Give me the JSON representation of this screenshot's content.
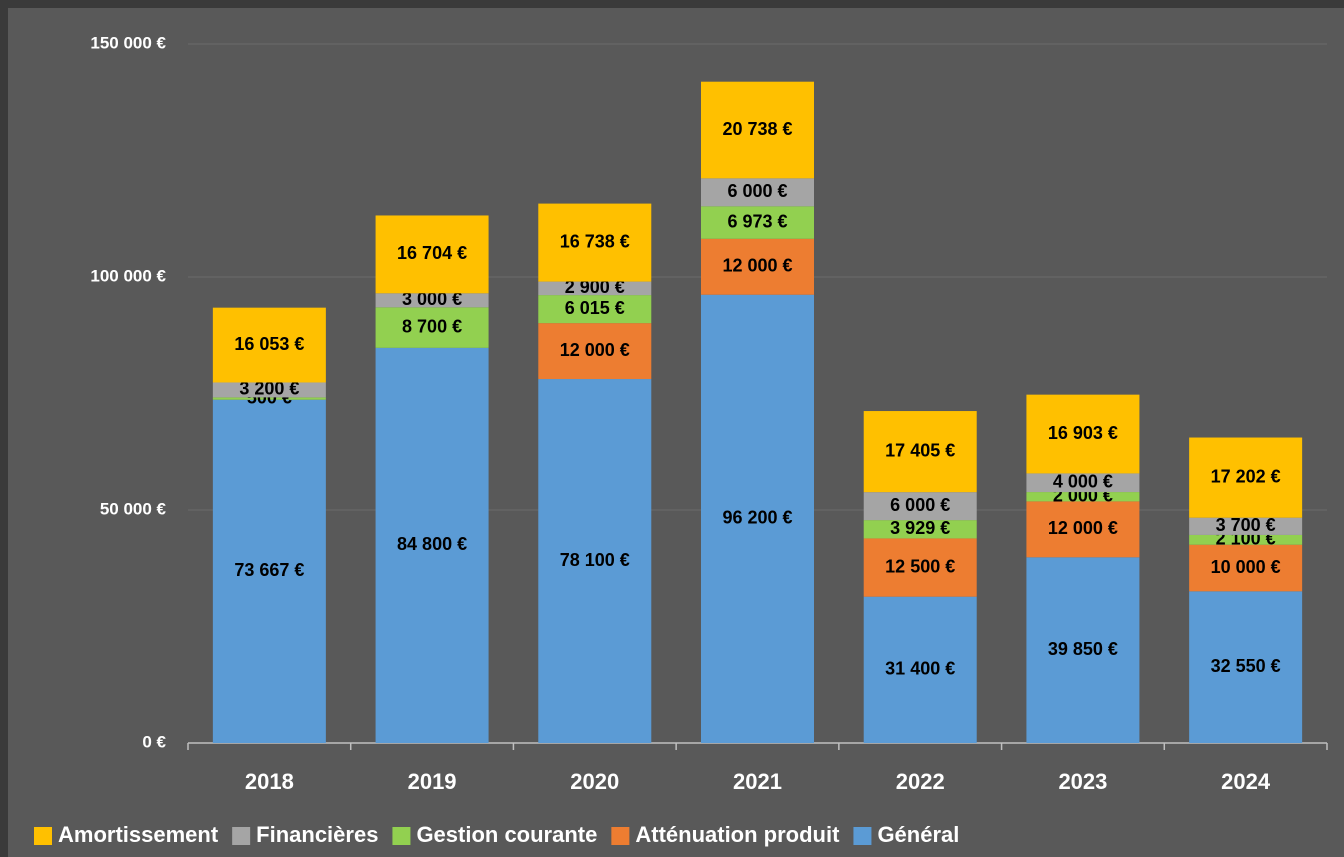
{
  "chart_data": {
    "type": "stacked-bar",
    "categories": [
      "2018",
      "2019",
      "2020",
      "2021",
      "2022",
      "2023",
      "2024"
    ],
    "ylim": [
      0,
      150000
    ],
    "yticks": [
      {
        "value": 0,
        "label": "0 €"
      },
      {
        "value": 50000,
        "label": "50 000 €"
      },
      {
        "value": 100000,
        "label": "100 000 €"
      },
      {
        "value": 150000,
        "label": "150 000 €"
      }
    ],
    "grid": true,
    "legend": "bottom",
    "series": [
      {
        "name": "Amortissement",
        "color": "#ffc000",
        "values": [
          16053,
          16704,
          16738,
          20738,
          17405,
          16903,
          17202
        ],
        "value_labels": [
          "16 053 €",
          "16 704 €",
          "16 738 €",
          "20 738 €",
          "17 405 €",
          "16 903 €",
          "17 202 €"
        ]
      },
      {
        "name": "Financières",
        "color": "#a5a5a5",
        "values": [
          3200,
          3000,
          2900,
          6000,
          6000,
          4000,
          3700
        ],
        "value_labels": [
          "3 200 €",
          "3 000 €",
          "2 900 €",
          "6 000 €",
          "6 000 €",
          "4 000 €",
          "3 700 €"
        ]
      },
      {
        "name": "Gestion courante",
        "color": "#92d050",
        "values": [
          500,
          8700,
          6015,
          6973,
          3929,
          2000,
          2100
        ],
        "value_labels": [
          "500 €",
          "8 700 €",
          "6 015 €",
          "6 973 €",
          "3 929 €",
          "2 000 €",
          "2 100 €"
        ]
      },
      {
        "name": "Atténuation produit",
        "color": "#ed7d31",
        "values": [
          null,
          null,
          12000,
          12000,
          12500,
          12000,
          10000
        ],
        "value_labels": [
          null,
          null,
          "12 000 €",
          "12 000 €",
          "12 500 €",
          "12 000 €",
          "10 000 €"
        ]
      },
      {
        "name": "Général",
        "color": "#5b9bd5",
        "values": [
          73667,
          84800,
          78100,
          96200,
          31400,
          39850,
          32550
        ],
        "value_labels": [
          "73 667 €",
          "84 800 €",
          "78 100 €",
          "96 200 €",
          "31 400 €",
          "39 850 €",
          "32 550 €"
        ]
      }
    ]
  }
}
